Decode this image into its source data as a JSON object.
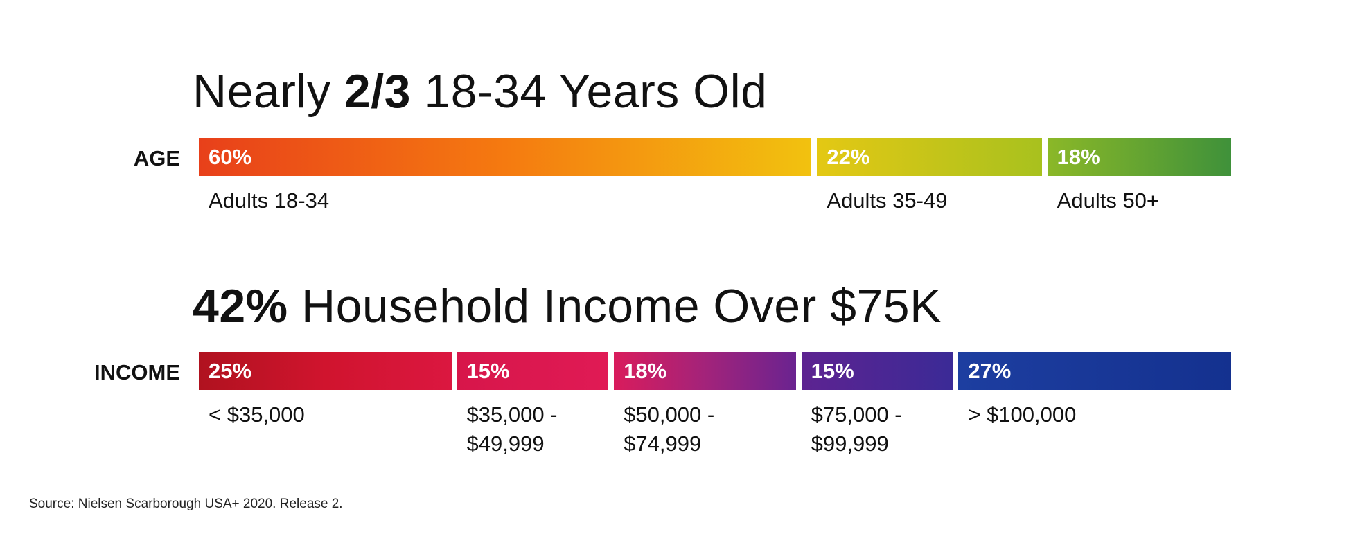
{
  "chart_data": [
    {
      "type": "bar",
      "orientation": "horizontal-stacked",
      "title_parts": [
        "Nearly ",
        "2/3",
        " 18-34 Years Old"
      ],
      "row_label": "AGE",
      "categories": [
        "Adults 18-34",
        "Adults 35-49",
        "Adults 50+"
      ],
      "values": [
        60,
        22,
        18
      ],
      "value_labels": [
        "60%",
        "22%",
        "18%"
      ],
      "gradients": [
        [
          "#e8401a",
          "#f57a10",
          "#f2c20f"
        ],
        [
          "#e4c814",
          "#a8c11e"
        ],
        [
          "#8bb828",
          "#3f913a"
        ]
      ]
    },
    {
      "type": "bar",
      "orientation": "horizontal-stacked",
      "title_parts": [
        "42%",
        " Household Income Over $75K"
      ],
      "row_label": "INCOME",
      "categories": [
        "< $35,000",
        "$35,000 -\n$49,999",
        "$50,000 -\n$74,999",
        "$75,000 -\n$99,999",
        "> $100,000"
      ],
      "values": [
        25,
        15,
        18,
        15,
        27
      ],
      "value_labels": [
        "25%",
        "15%",
        "18%",
        "15%",
        "27%"
      ],
      "gradients": [
        [
          "#b0121f",
          "#d0142e",
          "#db1740"
        ],
        [
          "#d7164a",
          "#e01a55"
        ],
        [
          "#d91c5c",
          "#a3237a",
          "#6a2390"
        ],
        [
          "#5d2391",
          "#3b2a96"
        ],
        [
          "#1d3ea0",
          "#14318f"
        ]
      ]
    }
  ],
  "source": "Source: Nielsen Scarborough USA+ 2020. Release 2."
}
